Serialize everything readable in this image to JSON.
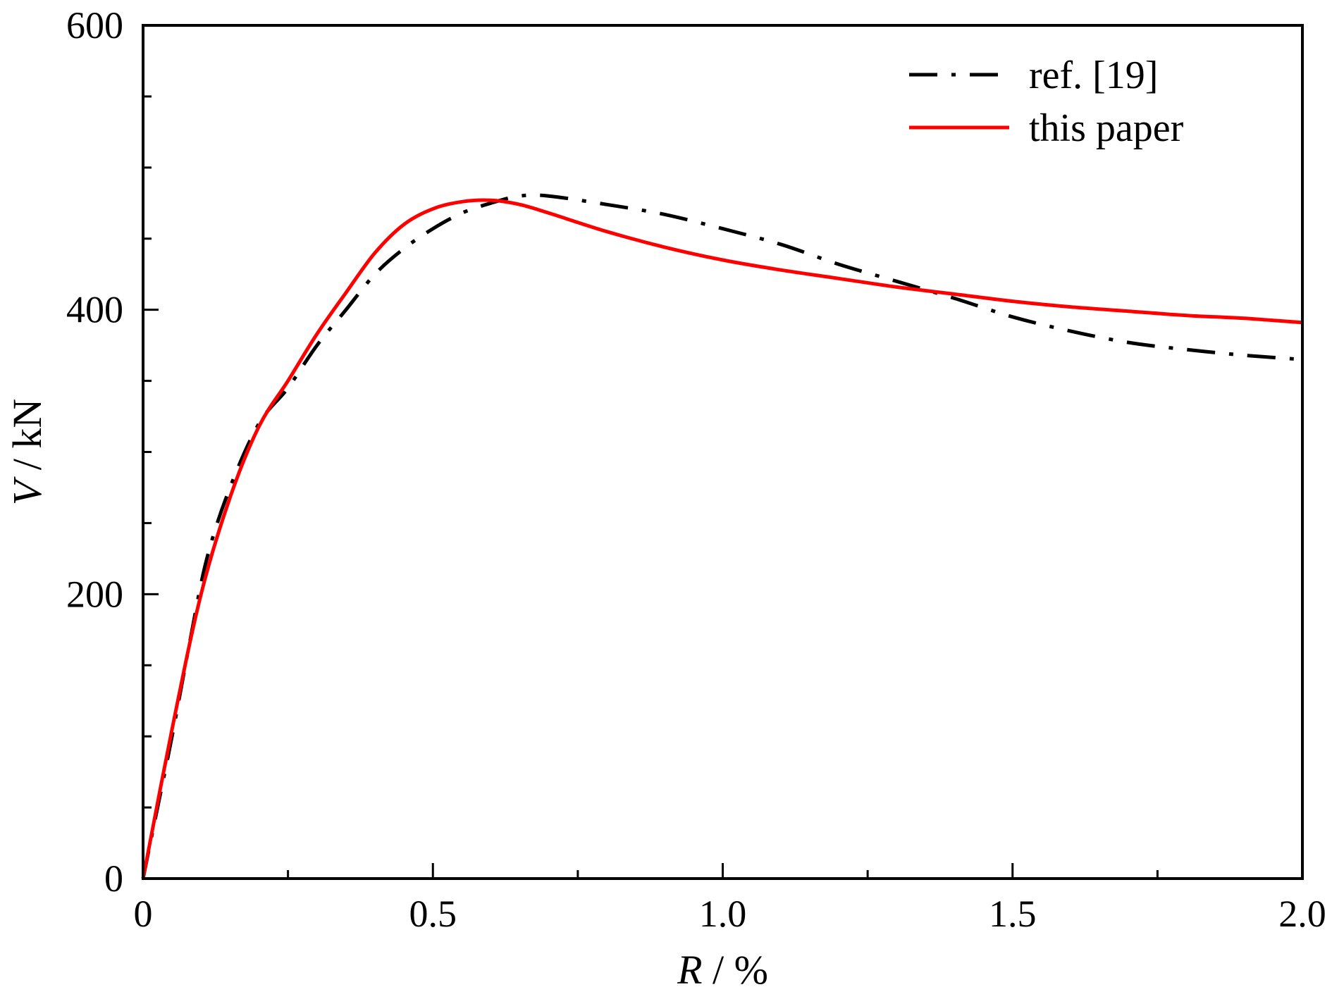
{
  "chart_data": {
    "type": "line",
    "title": "",
    "xlabel": {
      "var": "R",
      "unit": " / %"
    },
    "ylabel": {
      "var": "V",
      "unit": " / kN"
    },
    "xlim": [
      0,
      2.0
    ],
    "ylim": [
      0,
      600
    ],
    "x_ticks": [
      0,
      0.5,
      1.0,
      1.5,
      2.0
    ],
    "x_tick_labels": [
      "0",
      "0.5",
      "1.0",
      "1.5",
      "2.0"
    ],
    "x_minor_ticks": [
      0.25,
      0.75,
      1.25,
      1.75
    ],
    "y_ticks": [
      0,
      200,
      400,
      600
    ],
    "y_tick_labels": [
      "0",
      "200",
      "400",
      "600"
    ],
    "y_minor_ticks": [
      50,
      100,
      150,
      250,
      300,
      350,
      450,
      500,
      550
    ],
    "grid": false,
    "legend_position": "top-right",
    "series": [
      {
        "name": "ref. [19]",
        "color": "#000000",
        "style": "dash-dot",
        "points": [
          [
            0.0,
            0
          ],
          [
            0.02,
            40
          ],
          [
            0.05,
            100
          ],
          [
            0.08,
            165
          ],
          [
            0.11,
            225
          ],
          [
            0.15,
            275
          ],
          [
            0.2,
            320
          ],
          [
            0.25,
            345
          ],
          [
            0.3,
            375
          ],
          [
            0.35,
            400
          ],
          [
            0.4,
            425
          ],
          [
            0.45,
            443
          ],
          [
            0.5,
            457
          ],
          [
            0.55,
            468
          ],
          [
            0.6,
            475
          ],
          [
            0.65,
            480
          ],
          [
            0.7,
            480
          ],
          [
            0.8,
            474
          ],
          [
            0.9,
            467
          ],
          [
            1.0,
            457
          ],
          [
            1.1,
            446
          ],
          [
            1.2,
            432
          ],
          [
            1.3,
            420
          ],
          [
            1.4,
            408
          ],
          [
            1.5,
            395
          ],
          [
            1.6,
            385
          ],
          [
            1.7,
            377
          ],
          [
            1.8,
            372
          ],
          [
            1.9,
            368
          ],
          [
            2.0,
            365
          ]
        ]
      },
      {
        "name": "this paper",
        "color": "#ff0000",
        "style": "solid",
        "points": [
          [
            0.0,
            0
          ],
          [
            0.05,
            105
          ],
          [
            0.1,
            200
          ],
          [
            0.15,
            268
          ],
          [
            0.2,
            318
          ],
          [
            0.25,
            350
          ],
          [
            0.3,
            383
          ],
          [
            0.35,
            412
          ],
          [
            0.4,
            440
          ],
          [
            0.45,
            460
          ],
          [
            0.5,
            471
          ],
          [
            0.55,
            476
          ],
          [
            0.6,
            477
          ],
          [
            0.65,
            474
          ],
          [
            0.7,
            468
          ],
          [
            0.8,
            455
          ],
          [
            0.9,
            444
          ],
          [
            1.0,
            435
          ],
          [
            1.1,
            428
          ],
          [
            1.2,
            422
          ],
          [
            1.3,
            416
          ],
          [
            1.4,
            411
          ],
          [
            1.5,
            406
          ],
          [
            1.6,
            402
          ],
          [
            1.7,
            399
          ],
          [
            1.8,
            396
          ],
          [
            1.9,
            394
          ],
          [
            2.0,
            391
          ]
        ]
      }
    ]
  }
}
